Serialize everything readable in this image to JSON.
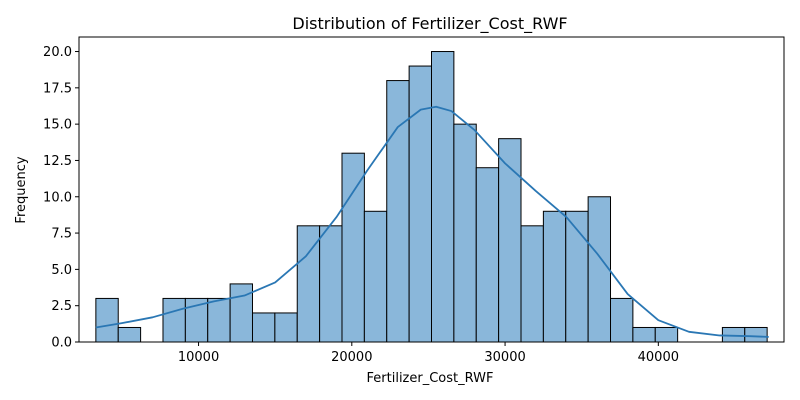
{
  "chart_data": {
    "type": "bar",
    "title": "Distribution of Fertilizer_Cost_RWF",
    "xlabel": "Fertilizer_Cost_RWF",
    "ylabel": "Frequency",
    "xlim": [
      2200,
      48200
    ],
    "ylim": [
      0,
      21
    ],
    "xticks": [
      10000,
      20000,
      30000,
      40000
    ],
    "xtick_labels": [
      "10000",
      "20000",
      "30000",
      "40000"
    ],
    "yticks": [
      0,
      2.5,
      5,
      7.5,
      10,
      12.5,
      15,
      17.5,
      20
    ],
    "ytick_labels": [
      "0.0",
      "2.5",
      "5.0",
      "7.5",
      "10.0",
      "12.5",
      "15.0",
      "17.5",
      "20.0"
    ],
    "bin_start": 3300,
    "bin_width": 1460,
    "counts": [
      3,
      1,
      0,
      3,
      3,
      3,
      4,
      2,
      2,
      8,
      8,
      13,
      9,
      18,
      19,
      20,
      15,
      12,
      14,
      8,
      9,
      9,
      10,
      3,
      1,
      1,
      0,
      0,
      1,
      1
    ],
    "bar_color": "#8ab7da",
    "edge_color": "#000000",
    "kde": {
      "color": "#2a77b4",
      "x": [
        3300,
        5000,
        7000,
        9000,
        11000,
        13000,
        15000,
        17000,
        19000,
        21000,
        23000,
        24500,
        25500,
        26500,
        28000,
        30000,
        32000,
        34000,
        36000,
        38000,
        40000,
        42000,
        44000,
        46000,
        47200
      ],
      "y": [
        1.0,
        1.3,
        1.7,
        2.3,
        2.8,
        3.2,
        4.1,
        5.9,
        8.6,
        11.8,
        14.8,
        16.0,
        16.2,
        15.9,
        14.6,
        12.3,
        10.4,
        8.6,
        6.1,
        3.3,
        1.5,
        0.7,
        0.45,
        0.4,
        0.35
      ]
    },
    "grid": false,
    "legend": "none"
  }
}
